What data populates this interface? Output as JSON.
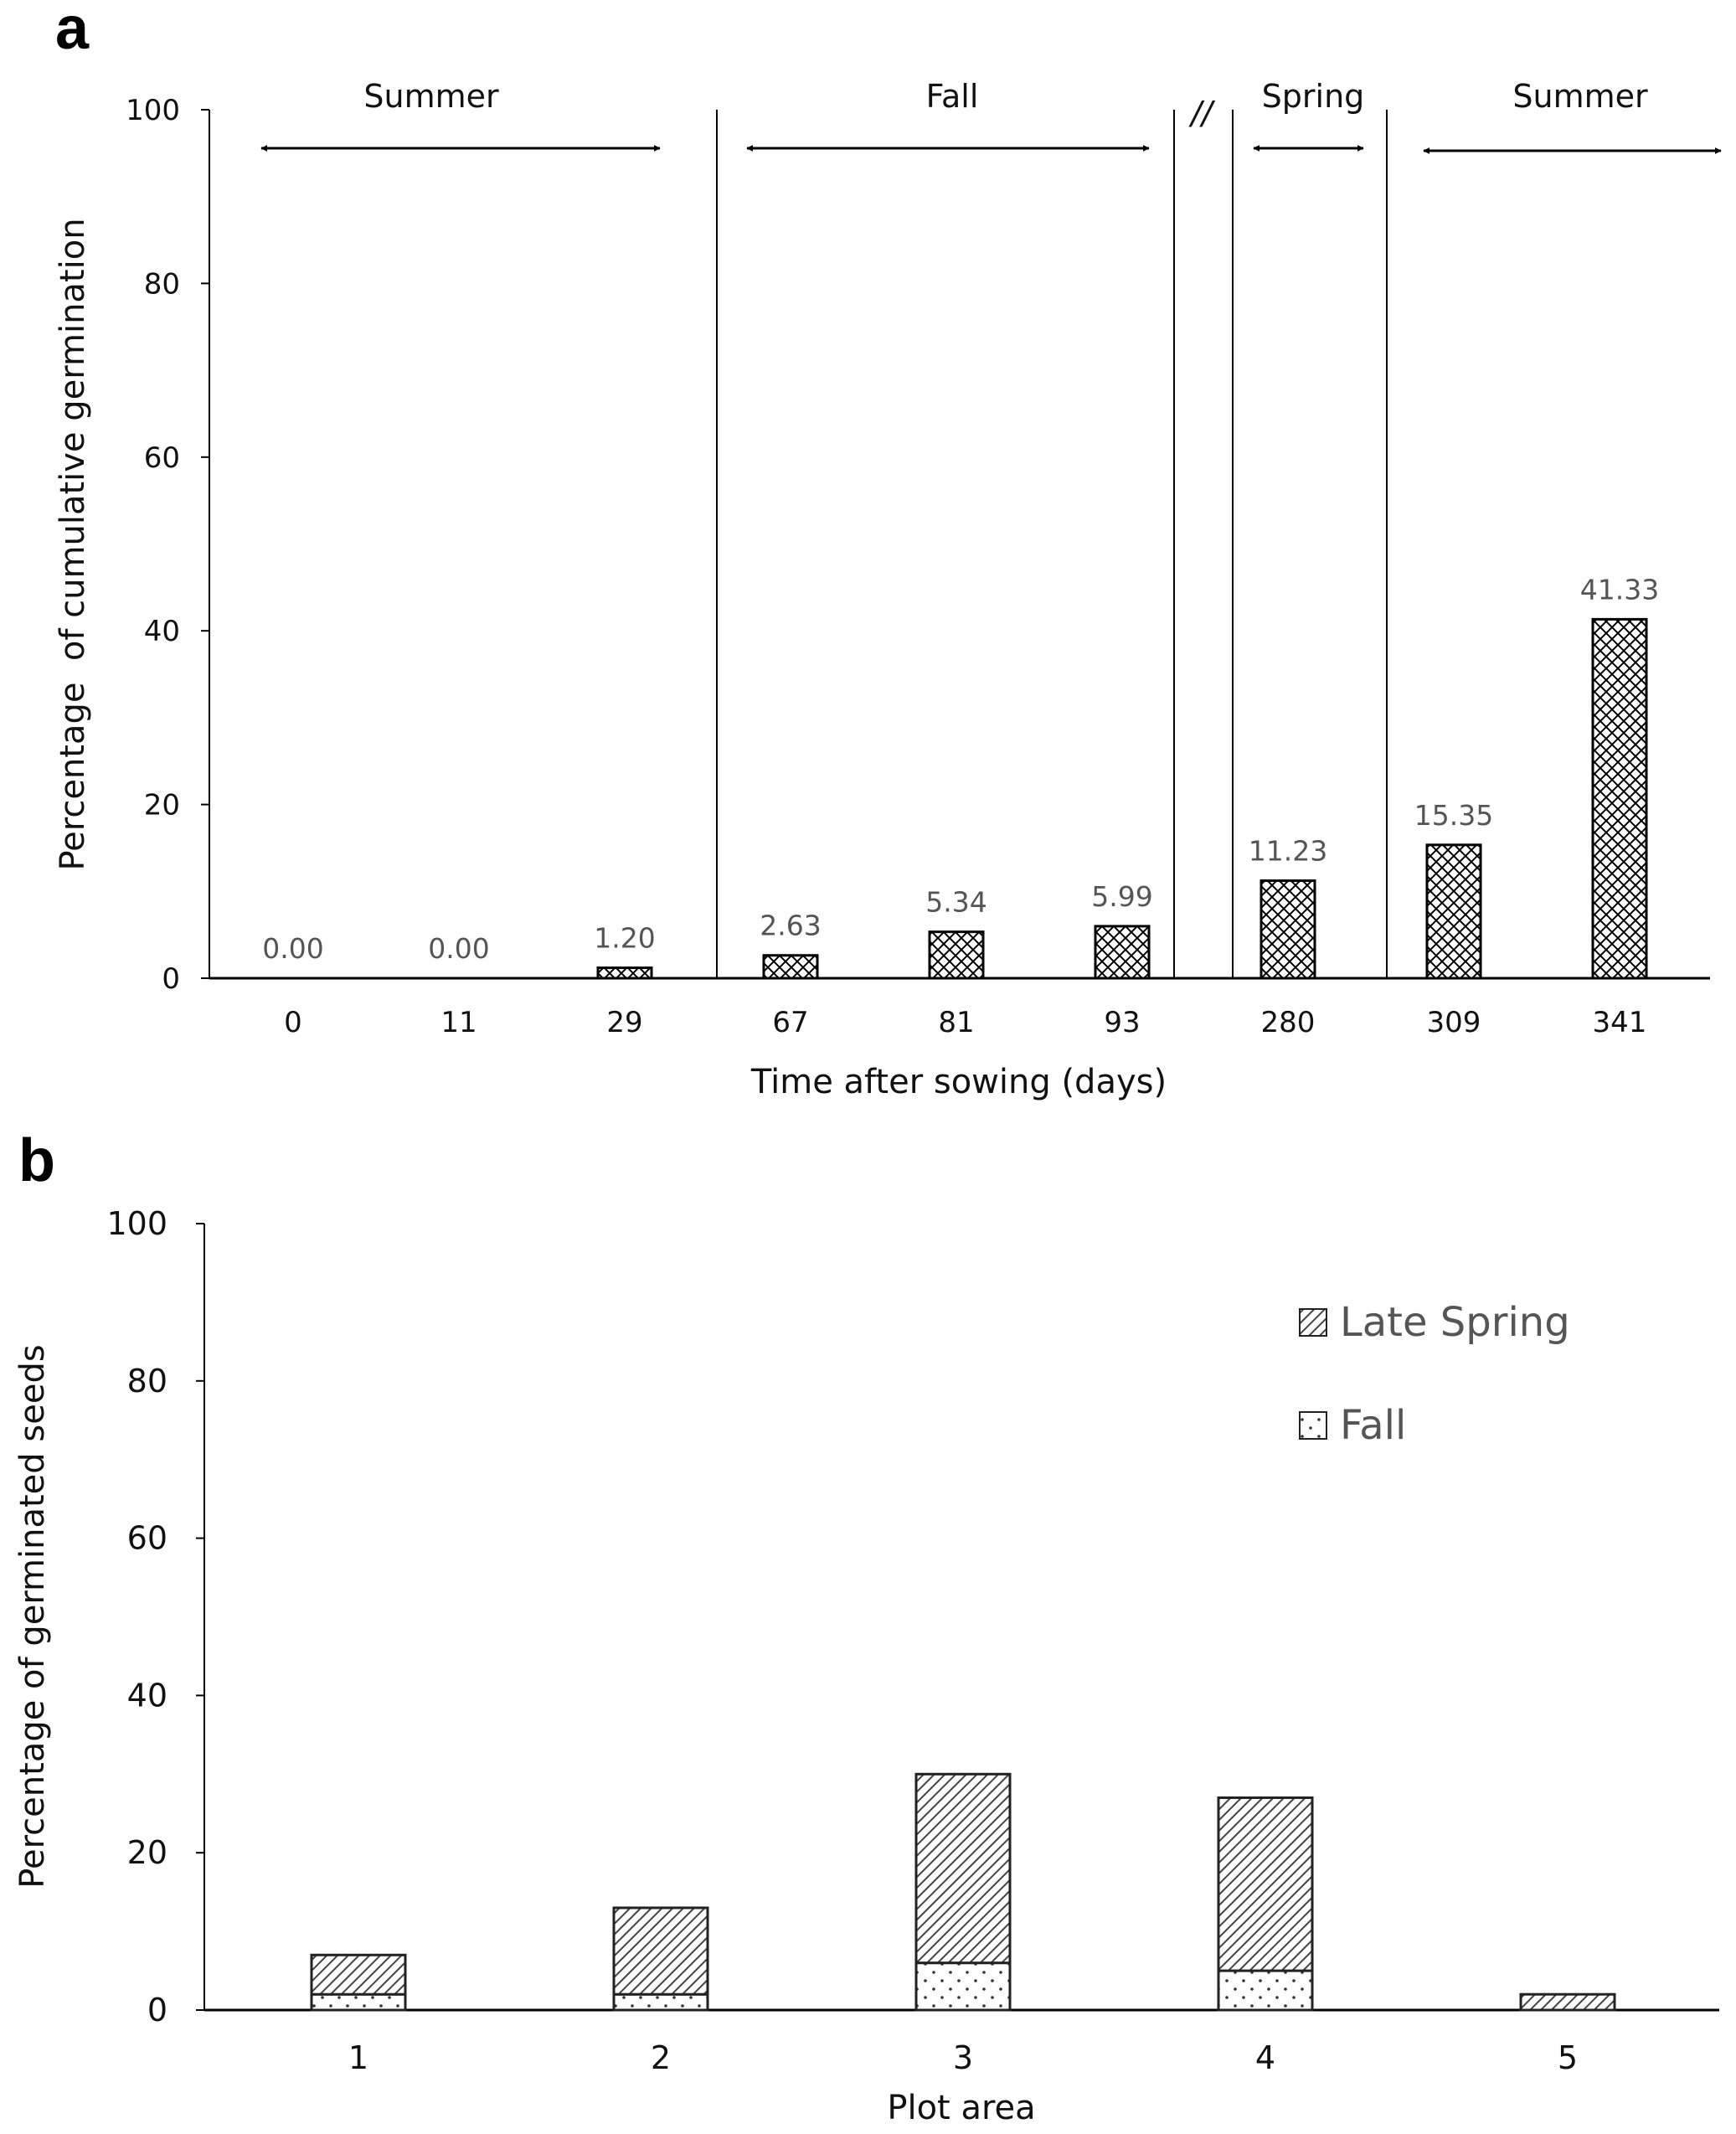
{
  "chart_data": [
    {
      "panel": "a",
      "type": "bar",
      "categories": [
        "0",
        "11",
        "29",
        "67",
        "81",
        "93",
        "280",
        "309",
        "341"
      ],
      "values": [
        0.0,
        0.0,
        1.2,
        2.63,
        5.34,
        5.99,
        11.23,
        15.35,
        41.33
      ],
      "data_labels": [
        "0.00",
        "0.00",
        "1.20",
        "2.63",
        "5.34",
        "5.99",
        "11.23",
        "15.35",
        "41.33"
      ],
      "xlabel": "Time after sowing (days)",
      "ylabel": "Percentage  of cumulative germination",
      "ylim": [
        0,
        100
      ],
      "yticks": [
        "0",
        "20",
        "40",
        "60",
        "80",
        "100"
      ],
      "seasons": [
        "Summer",
        "Fall",
        "Spring",
        "Summer"
      ],
      "break_mark": "//"
    },
    {
      "panel": "b",
      "type": "bar",
      "stacked": true,
      "categories": [
        "1",
        "2",
        "3",
        "4",
        "5"
      ],
      "series": [
        {
          "name": "Fall",
          "values": [
            2,
            2,
            6,
            5,
            0
          ]
        },
        {
          "name": "Late Spring",
          "values": [
            5,
            11,
            24,
            22,
            2
          ]
        }
      ],
      "xlabel": "Plot area",
      "ylabel": "Percentage of germinated seeds",
      "ylim": [
        0,
        100
      ],
      "yticks": [
        "0",
        "20",
        "40",
        "60",
        "80",
        "100"
      ],
      "legend": [
        "Late Spring",
        "Fall"
      ]
    }
  ]
}
